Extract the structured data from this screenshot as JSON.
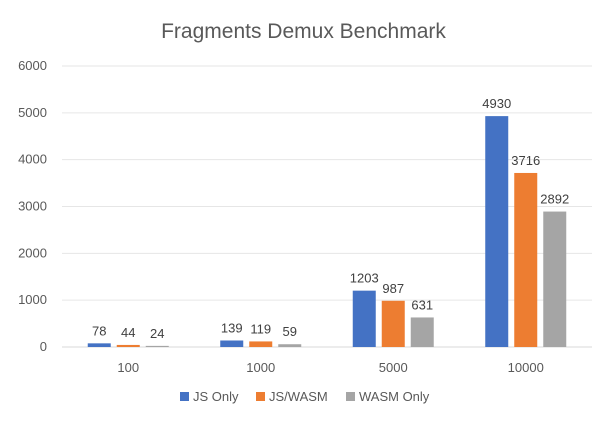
{
  "chart_data": {
    "type": "bar",
    "title": "Fragments Demux Benchmark",
    "xlabel": "",
    "ylabel": "",
    "categories": [
      "100",
      "1000",
      "5000",
      "10000"
    ],
    "series": [
      {
        "name": "JS Only",
        "values": [
          78,
          139,
          1203,
          4930
        ],
        "color": "#4472C4"
      },
      {
        "name": "JS/WASM",
        "values": [
          44,
          119,
          987,
          3716
        ],
        "color": "#ED7D31"
      },
      {
        "name": "WASM Only",
        "values": [
          24,
          59,
          631,
          2892
        ],
        "color": "#A5A5A5"
      }
    ],
    "ylim": [
      0,
      6000
    ],
    "yticks": [
      0,
      1000,
      2000,
      3000,
      4000,
      5000,
      6000
    ],
    "grid": true,
    "legend_position": "bottom"
  }
}
